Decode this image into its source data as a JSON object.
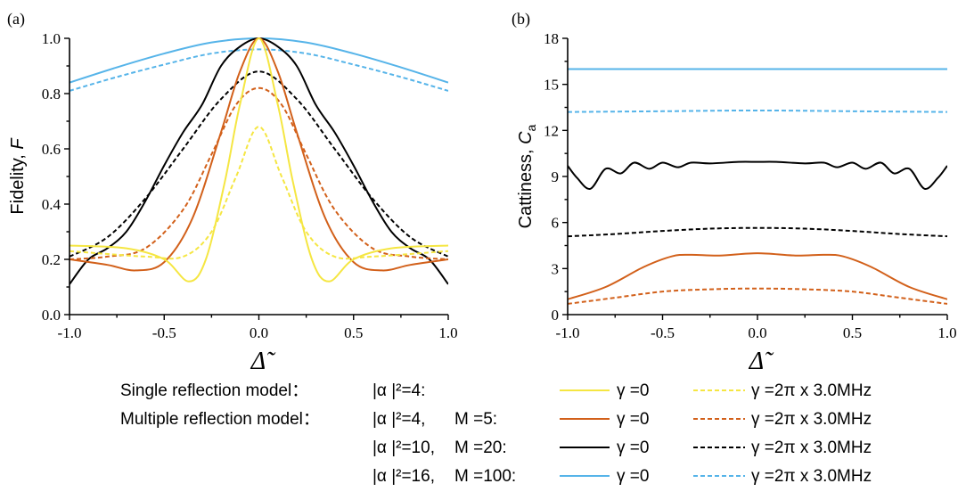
{
  "panels": {
    "a_label": "(a)",
    "b_label": "(b)"
  },
  "axes": {
    "a_ylabel": "Fidelity, ",
    "a_ylabel_var": "F",
    "b_ylabel": "Cattiness, ",
    "b_ylabel_var": "C",
    "b_ylabel_sub": "a",
    "xlabel": "Δ̃"
  },
  "legend": {
    "rows": [
      {
        "model": "Single reflection model：",
        "params": "|α |²=4:",
        "M": "",
        "solid_label": "γ =0",
        "dashed_label": "γ =2π x 3.0MHz",
        "color": "#f5e642"
      },
      {
        "model": "Multiple reflection model：",
        "params": "|α |²=4,",
        "M": "M =5:",
        "solid_label": "γ =0",
        "dashed_label": "γ =2π x 3.0MHz",
        "color": "#d2601a"
      },
      {
        "model": "",
        "params": "|α |²=10,",
        "M": "M =20:",
        "solid_label": "γ =0",
        "dashed_label": "γ =2π x 3.0MHz",
        "color": "#000000"
      },
      {
        "model": "",
        "params": "|α |²=16,",
        "M": "M =100:",
        "solid_label": "γ =0",
        "dashed_label": "γ =2π x 3.0MHz",
        "color": "#56b4e9"
      }
    ]
  },
  "chart_data": [
    {
      "type": "line",
      "panel": "(a)",
      "ylabel": "Fidelity, F",
      "xlabel": "Δ̃",
      "xlim": [
        -1.0,
        1.0
      ],
      "ylim": [
        0.0,
        1.0
      ],
      "xticks": [
        "-1.0",
        "-0.5",
        "0.0",
        "0.5",
        "1.0"
      ],
      "yticks": [
        "0.0",
        "0.2",
        "0.4",
        "0.6",
        "0.8",
        "1.0"
      ],
      "grid": false,
      "series": [
        {
          "name": "|α|²=16, M=100, γ=0",
          "color": "#56b4e9",
          "dash": false,
          "x": [
            -1.0,
            -0.75,
            -0.5,
            -0.25,
            0.0,
            0.25,
            0.5,
            0.75,
            1.0
          ],
          "y": [
            0.84,
            0.895,
            0.945,
            0.985,
            1.0,
            0.985,
            0.945,
            0.895,
            0.84
          ]
        },
        {
          "name": "|α|²=16, M=100, γ=2π x 3.0MHz",
          "color": "#56b4e9",
          "dash": true,
          "x": [
            -1.0,
            -0.75,
            -0.5,
            -0.25,
            0.0,
            0.25,
            0.5,
            0.75,
            1.0
          ],
          "y": [
            0.81,
            0.86,
            0.905,
            0.945,
            0.96,
            0.945,
            0.905,
            0.86,
            0.81
          ]
        },
        {
          "name": "|α|²=10, M=20, γ=0",
          "color": "#000000",
          "dash": false,
          "x": [
            -1.0,
            -0.9,
            -0.8,
            -0.7,
            -0.6,
            -0.5,
            -0.4,
            -0.3,
            -0.2,
            -0.1,
            0.0,
            0.1,
            0.2,
            0.3,
            0.4,
            0.5,
            0.6,
            0.7,
            0.8,
            0.9,
            1.0
          ],
          "y": [
            0.11,
            0.2,
            0.24,
            0.3,
            0.41,
            0.54,
            0.66,
            0.76,
            0.9,
            0.97,
            1.0,
            0.97,
            0.9,
            0.76,
            0.66,
            0.54,
            0.41,
            0.3,
            0.24,
            0.2,
            0.11
          ]
        },
        {
          "name": "|α|²=10, M=20, γ=2π x 3.0MHz",
          "color": "#000000",
          "dash": true,
          "x": [
            -1.0,
            -0.8,
            -0.6,
            -0.4,
            -0.2,
            0.0,
            0.2,
            0.4,
            0.6,
            0.8,
            1.0
          ],
          "y": [
            0.21,
            0.28,
            0.42,
            0.6,
            0.78,
            0.88,
            0.78,
            0.6,
            0.42,
            0.28,
            0.21
          ]
        },
        {
          "name": "|α|²=4, M=5, γ=0",
          "color": "#d2601a",
          "dash": false,
          "x": [
            -1.0,
            -0.8,
            -0.65,
            -0.5,
            -0.35,
            -0.2,
            -0.1,
            0.0,
            0.1,
            0.2,
            0.35,
            0.5,
            0.65,
            0.8,
            1.0
          ],
          "y": [
            0.2,
            0.18,
            0.16,
            0.19,
            0.35,
            0.66,
            0.88,
            1.0,
            0.88,
            0.66,
            0.35,
            0.19,
            0.16,
            0.18,
            0.2
          ]
        },
        {
          "name": "|α|²=4, M=5, γ=2π x 3.0MHz",
          "color": "#d2601a",
          "dash": true,
          "x": [
            -1.0,
            -0.8,
            -0.6,
            -0.4,
            -0.25,
            -0.12,
            0.0,
            0.12,
            0.25,
            0.4,
            0.6,
            0.8,
            1.0
          ],
          "y": [
            0.2,
            0.21,
            0.24,
            0.38,
            0.58,
            0.76,
            0.82,
            0.76,
            0.58,
            0.38,
            0.24,
            0.21,
            0.2
          ]
        },
        {
          "name": "|α|²=4, γ=0",
          "color": "#f5e642",
          "dash": false,
          "x": [
            -1.0,
            -0.7,
            -0.5,
            -0.37,
            -0.28,
            -0.18,
            -0.1,
            0.0,
            0.1,
            0.18,
            0.28,
            0.37,
            0.5,
            0.7,
            1.0
          ],
          "y": [
            0.25,
            0.24,
            0.2,
            0.12,
            0.2,
            0.48,
            0.76,
            1.0,
            0.76,
            0.48,
            0.2,
            0.12,
            0.2,
            0.24,
            0.25
          ]
        },
        {
          "name": "|α|²=4, γ=2π x 3.0MHz",
          "color": "#f5e642",
          "dash": true,
          "x": [
            -1.0,
            -0.6,
            -0.4,
            -0.25,
            -0.12,
            0.0,
            0.12,
            0.25,
            0.4,
            0.6,
            1.0
          ],
          "y": [
            0.23,
            0.21,
            0.21,
            0.3,
            0.5,
            0.68,
            0.5,
            0.3,
            0.21,
            0.21,
            0.23
          ]
        }
      ]
    },
    {
      "type": "line",
      "panel": "(b)",
      "ylabel": "Cattiness, Ca",
      "xlabel": "Δ̃",
      "xlim": [
        -1.0,
        1.0
      ],
      "ylim": [
        0,
        18
      ],
      "xticks": [
        "-1.0",
        "-0.5",
        "0.0",
        "0.5",
        "1.0"
      ],
      "yticks": [
        "0",
        "3",
        "6",
        "9",
        "12",
        "15",
        "18"
      ],
      "grid": false,
      "series": [
        {
          "name": "|α|²=16, M=100, γ=0",
          "color": "#56b4e9",
          "dash": false,
          "x": [
            -1.0,
            -0.5,
            0.0,
            0.5,
            1.0
          ],
          "y": [
            16.0,
            16.0,
            16.0,
            16.0,
            16.0
          ]
        },
        {
          "name": "|α|²=16, M=100, γ=2π x 3.0MHz",
          "color": "#56b4e9",
          "dash": true,
          "x": [
            -1.0,
            -0.5,
            0.0,
            0.5,
            1.0
          ],
          "y": [
            13.2,
            13.25,
            13.3,
            13.25,
            13.2
          ]
        },
        {
          "name": "|α|²=10, M=20, γ=0",
          "color": "#000000",
          "dash": false,
          "x": [
            -1.0,
            -0.95,
            -0.88,
            -0.8,
            -0.72,
            -0.65,
            -0.57,
            -0.5,
            -0.42,
            -0.35,
            -0.25,
            -0.1,
            0.0,
            0.1,
            0.25,
            0.35,
            0.42,
            0.5,
            0.57,
            0.65,
            0.72,
            0.8,
            0.88,
            0.95,
            1.0
          ],
          "y": [
            9.7,
            8.9,
            8.2,
            9.5,
            9.2,
            9.9,
            9.5,
            9.9,
            9.6,
            9.9,
            9.85,
            9.95,
            9.95,
            9.95,
            9.85,
            9.9,
            9.6,
            9.9,
            9.5,
            9.9,
            9.2,
            9.5,
            8.2,
            8.9,
            9.7
          ]
        },
        {
          "name": "|α|²=10, M=20, γ=2π x 3.0MHz",
          "color": "#000000",
          "dash": true,
          "x": [
            -1.0,
            -0.75,
            -0.5,
            -0.25,
            0.0,
            0.25,
            0.5,
            0.75,
            1.0
          ],
          "y": [
            5.1,
            5.25,
            5.45,
            5.6,
            5.65,
            5.6,
            5.45,
            5.25,
            5.1
          ]
        },
        {
          "name": "|α|²=4, M=5, γ=0",
          "color": "#d2601a",
          "dash": false,
          "x": [
            -1.0,
            -0.8,
            -0.6,
            -0.45,
            -0.35,
            -0.2,
            0.0,
            0.2,
            0.35,
            0.45,
            0.6,
            0.8,
            1.0
          ],
          "y": [
            1.0,
            1.8,
            3.1,
            3.8,
            3.9,
            3.85,
            4.0,
            3.85,
            3.9,
            3.8,
            3.1,
            1.8,
            1.0
          ]
        },
        {
          "name": "|α|²=4, M=5, γ=2π x 3.0MHz",
          "color": "#d2601a",
          "dash": true,
          "x": [
            -1.0,
            -0.75,
            -0.5,
            -0.25,
            0.0,
            0.25,
            0.5,
            0.75,
            1.0
          ],
          "y": [
            0.7,
            1.1,
            1.5,
            1.65,
            1.7,
            1.65,
            1.5,
            1.1,
            0.7
          ]
        }
      ]
    }
  ]
}
